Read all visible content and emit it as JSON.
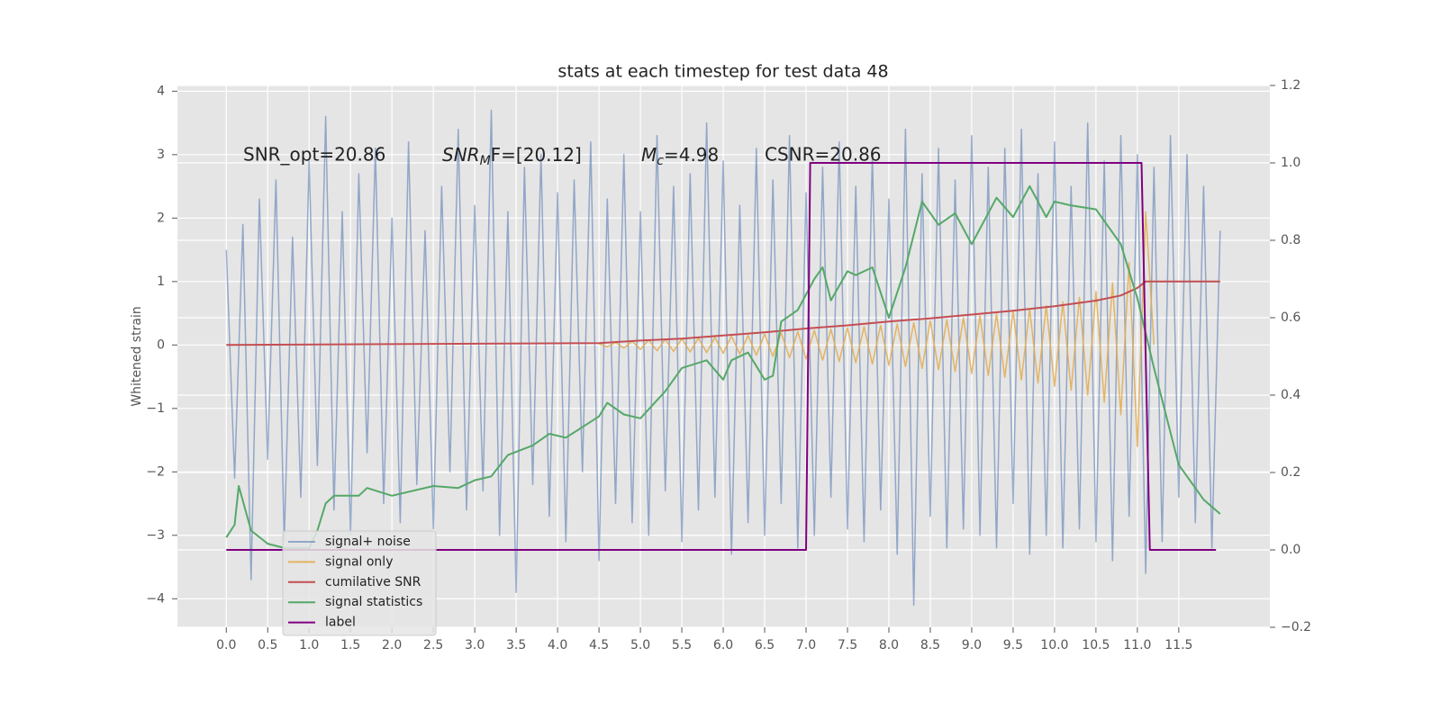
{
  "chart_data": {
    "type": "line",
    "title": "stats at each timestep for test data 48",
    "ylabel": "Whitened strain",
    "annotations": [
      "SNR_opt=20.86",
      {
        "main": "SNR",
        "sub": "M",
        "rest": "F=[20.12]"
      },
      {
        "main": "M",
        "sub": "c",
        "rest": "=4.98"
      },
      "CSNR=20.86"
    ],
    "xlim": [
      -0.59,
      12.6
    ],
    "ylim": [
      -4.45,
      4.09
    ],
    "y2lim": [
      -0.2,
      1.2
    ],
    "xticks": [
      {
        "value": 0,
        "label": "0.0"
      },
      {
        "value": 0.5,
        "label": "0.5"
      },
      {
        "value": 1,
        "label": "1.0"
      },
      {
        "value": 1.5,
        "label": "1.5"
      },
      {
        "value": 2,
        "label": "2.0"
      },
      {
        "value": 2.5,
        "label": "2.5"
      },
      {
        "value": 3,
        "label": "3.0"
      },
      {
        "value": 3.5,
        "label": "3.5"
      },
      {
        "value": 4,
        "label": "4.0"
      },
      {
        "value": 4.5,
        "label": "4.5"
      },
      {
        "value": 5,
        "label": "5.0"
      },
      {
        "value": 5.5,
        "label": "5.5"
      },
      {
        "value": 6,
        "label": "6.0"
      },
      {
        "value": 6.5,
        "label": "6.5"
      },
      {
        "value": 7,
        "label": "7.0"
      },
      {
        "value": 7.5,
        "label": "7.5"
      },
      {
        "value": 8,
        "label": "8.0"
      },
      {
        "value": 8.5,
        "label": "8.5"
      },
      {
        "value": 9,
        "label": "9.0"
      },
      {
        "value": 9.5,
        "label": "9.5"
      },
      {
        "value": 10,
        "label": "10.0"
      },
      {
        "value": 10.5,
        "label": "10.5"
      },
      {
        "value": 11,
        "label": "11.0"
      },
      {
        "value": 11.5,
        "label": "11.5"
      }
    ],
    "yticks": [
      {
        "value": -4,
        "label": "−4"
      },
      {
        "value": -3,
        "label": "−3"
      },
      {
        "value": -2,
        "label": "−2"
      },
      {
        "value": -1,
        "label": "−1"
      },
      0,
      1,
      2,
      3,
      4
    ],
    "y2ticks": [
      {
        "value": -0.2,
        "label": "−0.2"
      },
      {
        "value": 0,
        "label": "0.0"
      },
      0.2,
      0.4,
      0.6,
      0.8,
      {
        "value": 1,
        "label": "1.0"
      },
      1.2
    ],
    "grid": true,
    "legend": "lower left",
    "series": [
      {
        "name": "signal+ noise",
        "color": "#4c72b0",
        "x": [
          0,
          0.1,
          0.2,
          0.3,
          0.4,
          0.5,
          0.6,
          0.7,
          0.8,
          0.9,
          1,
          1.1,
          1.2,
          1.3,
          1.4,
          1.5,
          1.6,
          1.7,
          1.8,
          1.9,
          2,
          2.1,
          2.2,
          2.3,
          2.4,
          2.5,
          2.6,
          2.7,
          2.8,
          2.9,
          3,
          3.1,
          3.2,
          3.3,
          3.4,
          3.5,
          3.6,
          3.7,
          3.8,
          3.9,
          4,
          4.1,
          4.2,
          4.3,
          4.4,
          4.5,
          4.6,
          4.7,
          4.8,
          4.9,
          5,
          5.1,
          5.2,
          5.3,
          5.4,
          5.5,
          5.6,
          5.7,
          5.8,
          5.9,
          6,
          6.1,
          6.2,
          6.3,
          6.4,
          6.5,
          6.6,
          6.7,
          6.8,
          6.9,
          7,
          7.1,
          7.2,
          7.3,
          7.4,
          7.5,
          7.6,
          7.7,
          7.8,
          7.9,
          8,
          8.1,
          8.2,
          8.3,
          8.4,
          8.5,
          8.6,
          8.7,
          8.8,
          8.9,
          9,
          9.1,
          9.2,
          9.3,
          9.4,
          9.5,
          9.6,
          9.7,
          9.8,
          9.9,
          10,
          10.1,
          10.2,
          10.3,
          10.4,
          10.5,
          10.6,
          10.7,
          10.8,
          10.9,
          11,
          11.1,
          11.2,
          11.3,
          11.4,
          11.5,
          11.6,
          11.7,
          11.8,
          11.9,
          12
        ],
        "values": [
          1.5,
          -2.1,
          1.9,
          -3.7,
          2.3,
          -1.8,
          2.6,
          -3.1,
          1.7,
          -2.4,
          2.9,
          -1.9,
          3.6,
          -2.6,
          2.1,
          -3.0,
          2.7,
          -1.7,
          3.1,
          -2.5,
          2.0,
          -2.8,
          3.2,
          -2.2,
          1.8,
          -2.9,
          2.5,
          -2.0,
          3.4,
          -2.6,
          2.2,
          -2.3,
          3.7,
          -3.0,
          2.1,
          -3.9,
          2.8,
          -2.2,
          3.0,
          -2.7,
          2.4,
          -3.1,
          2.6,
          -2.0,
          3.2,
          -3.4,
          2.3,
          -2.5,
          3.0,
          -2.8,
          2.1,
          -3.0,
          3.3,
          -2.3,
          2.5,
          -3.1,
          2.7,
          -2.6,
          3.5,
          -2.4,
          2.9,
          -3.3,
          2.2,
          -2.8,
          3.1,
          -3.0,
          2.6,
          -2.5,
          3.3,
          -3.2,
          2.4,
          -3.0,
          2.8,
          -2.4,
          3.2,
          -2.9,
          2.5,
          -3.1,
          3.0,
          -2.6,
          2.3,
          -3.3,
          3.4,
          -4.1,
          2.7,
          -2.7,
          3.1,
          -3.2,
          2.6,
          -2.9,
          3.3,
          -3.0,
          2.8,
          -3.2,
          3.1,
          -2.5,
          3.4,
          -3.3,
          2.7,
          -3.0,
          3.2,
          -3.2,
          2.5,
          -2.9,
          3.5,
          -3.1,
          2.9,
          -3.4,
          3.3,
          -2.7,
          3.0,
          -3.6,
          2.8,
          -3.1,
          3.3,
          -2.4,
          3.0,
          -2.8,
          2.5,
          -3.2,
          1.8
        ]
      },
      {
        "name": "signal only",
        "color": "#e3aa4c",
        "x": [
          4.5,
          4.6,
          4.7,
          4.8,
          4.9,
          5,
          5.1,
          5.2,
          5.3,
          5.4,
          5.5,
          5.6,
          5.7,
          5.8,
          5.9,
          6,
          6.1,
          6.2,
          6.3,
          6.4,
          6.5,
          6.6,
          6.7,
          6.8,
          6.9,
          7,
          7.1,
          7.2,
          7.3,
          7.4,
          7.5,
          7.6,
          7.7,
          7.8,
          7.9,
          8,
          8.1,
          8.2,
          8.3,
          8.4,
          8.5,
          8.6,
          8.7,
          8.8,
          8.9,
          9,
          9.1,
          9.2,
          9.3,
          9.4,
          9.5,
          9.6,
          9.7,
          9.8,
          9.9,
          10,
          10.1,
          10.2,
          10.3,
          10.4,
          10.5,
          10.6,
          10.7,
          10.8,
          10.9,
          11,
          11.1,
          11.2
        ],
        "values": [
          0.02,
          -0.03,
          0.04,
          -0.05,
          0.06,
          -0.07,
          0.08,
          -0.09,
          0.09,
          -0.1,
          0.1,
          -0.11,
          0.11,
          -0.12,
          0.12,
          -0.13,
          0.14,
          -0.14,
          0.15,
          -0.16,
          0.17,
          -0.18,
          0.19,
          -0.2,
          0.21,
          -0.22,
          0.23,
          -0.24,
          0.25,
          -0.26,
          0.27,
          -0.28,
          0.29,
          -0.3,
          0.31,
          -0.32,
          0.33,
          -0.34,
          0.35,
          -0.37,
          0.38,
          -0.39,
          0.4,
          -0.42,
          0.43,
          -0.45,
          0.46,
          -0.48,
          0.49,
          -0.51,
          0.53,
          -0.55,
          0.57,
          -0.6,
          0.62,
          -0.65,
          0.68,
          -0.71,
          0.75,
          -0.79,
          0.84,
          -0.9,
          0.98,
          -1.1,
          1.3,
          -1.6,
          2.1,
          0
        ]
      },
      {
        "name": "cumilative SNR",
        "color": "#c44e52",
        "x": [
          0,
          4.5,
          5,
          5.5,
          6,
          6.5,
          7,
          7.5,
          8,
          8.5,
          9,
          9.5,
          10,
          10.5,
          10.8,
          11,
          11.1,
          12
        ],
        "values": [
          0,
          0.03,
          0.07,
          0.1,
          0.15,
          0.2,
          0.26,
          0.31,
          0.37,
          0.42,
          0.48,
          0.54,
          0.61,
          0.7,
          0.78,
          0.9,
          1,
          1
        ]
      },
      {
        "name": "signal statistics",
        "color": "#55a868",
        "axis": "y2",
        "x": [
          0,
          0.1,
          0.15,
          0.3,
          0.5,
          0.7,
          1,
          1.1,
          1.2,
          1.3,
          1.6,
          1.7,
          2,
          2.5,
          2.8,
          3,
          3.2,
          3.4,
          3.7,
          3.9,
          4.1,
          4.5,
          4.6,
          4.8,
          5,
          5.3,
          5.5,
          5.8,
          6,
          6.1,
          6.3,
          6.5,
          6.6,
          6.7,
          6.9,
          7.1,
          7.2,
          7.3,
          7.5,
          7.6,
          7.8,
          8,
          8.2,
          8.4,
          8.6,
          8.8,
          9,
          9.3,
          9.5,
          9.7,
          9.9,
          10,
          10.2,
          10.5,
          10.8,
          11,
          11.2,
          11.5,
          11.8,
          12
        ],
        "values": [
          0.032,
          0.065,
          0.165,
          0.05,
          0.016,
          0.005,
          0.005,
          0.05,
          0.12,
          0.14,
          0.14,
          0.16,
          0.14,
          0.165,
          0.16,
          0.18,
          0.19,
          0.245,
          0.27,
          0.3,
          0.29,
          0.345,
          0.38,
          0.35,
          0.34,
          0.41,
          0.47,
          0.49,
          0.44,
          0.49,
          0.51,
          0.44,
          0.45,
          0.59,
          0.62,
          0.7,
          0.73,
          0.645,
          0.72,
          0.71,
          0.73,
          0.6,
          0.73,
          0.9,
          0.84,
          0.87,
          0.79,
          0.91,
          0.86,
          0.94,
          0.86,
          0.9,
          0.89,
          0.88,
          0.79,
          0.65,
          0.47,
          0.22,
          0.13,
          0.093
        ]
      },
      {
        "name": "label",
        "color": "#800080",
        "axis": "y2",
        "x": [
          0,
          7,
          7.05,
          11.05,
          11.15,
          11.95
        ],
        "values": [
          0,
          0,
          1,
          1,
          0,
          0
        ]
      }
    ]
  }
}
